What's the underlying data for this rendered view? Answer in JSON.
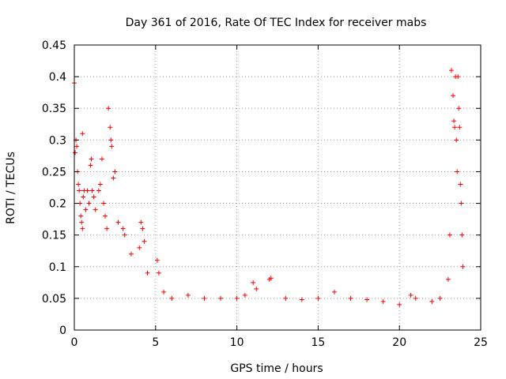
{
  "chart_data": {
    "type": "scatter",
    "title": "Day 361 of 2016, Rate Of TEC Index for receiver mabs",
    "xlabel": "GPS time / hours",
    "ylabel": "ROTI / TECUs",
    "xlim": [
      0,
      25
    ],
    "ylim": [
      0,
      0.45
    ],
    "xticks": [
      0,
      5,
      10,
      15,
      20,
      25
    ],
    "yticks": [
      0,
      0.05,
      0.1,
      0.15,
      0.2,
      0.25,
      0.3,
      0.35,
      0.4,
      0.45
    ],
    "xtick_labels": [
      "0",
      "5",
      "10",
      "15",
      "20",
      "25"
    ],
    "ytick_labels": [
      "0",
      "0.05",
      "0.1",
      "0.15",
      "0.2",
      "0.25",
      "0.3",
      "0.35",
      "0.4",
      "0.45"
    ],
    "grid": true,
    "marker": "+",
    "marker_color": "#ff0000",
    "series": [
      {
        "name": "ROTI",
        "points": [
          [
            0.0,
            0.39
          ],
          [
            0.05,
            0.28
          ],
          [
            0.1,
            0.3
          ],
          [
            0.15,
            0.29
          ],
          [
            0.2,
            0.25
          ],
          [
            0.25,
            0.23
          ],
          [
            0.3,
            0.22
          ],
          [
            0.35,
            0.2
          ],
          [
            0.4,
            0.18
          ],
          [
            0.45,
            0.17
          ],
          [
            0.5,
            0.31
          ],
          [
            0.5,
            0.16
          ],
          [
            0.55,
            0.21
          ],
          [
            0.6,
            0.22
          ],
          [
            0.7,
            0.19
          ],
          [
            0.8,
            0.22
          ],
          [
            0.9,
            0.2
          ],
          [
            1.0,
            0.26
          ],
          [
            1.05,
            0.27
          ],
          [
            1.1,
            0.22
          ],
          [
            1.2,
            0.21
          ],
          [
            1.3,
            0.19
          ],
          [
            1.5,
            0.22
          ],
          [
            1.6,
            0.23
          ],
          [
            1.7,
            0.27
          ],
          [
            1.8,
            0.2
          ],
          [
            1.9,
            0.18
          ],
          [
            2.0,
            0.16
          ],
          [
            2.1,
            0.35
          ],
          [
            2.2,
            0.32
          ],
          [
            2.25,
            0.3
          ],
          [
            2.3,
            0.29
          ],
          [
            2.4,
            0.24
          ],
          [
            2.5,
            0.25
          ],
          [
            2.7,
            0.17
          ],
          [
            3.0,
            0.16
          ],
          [
            3.1,
            0.15
          ],
          [
            3.5,
            0.12
          ],
          [
            4.0,
            0.13
          ],
          [
            4.1,
            0.17
          ],
          [
            4.2,
            0.16
          ],
          [
            4.3,
            0.14
          ],
          [
            4.5,
            0.09
          ],
          [
            5.1,
            0.11
          ],
          [
            5.2,
            0.09
          ],
          [
            5.5,
            0.06
          ],
          [
            6.0,
            0.05
          ],
          [
            7.0,
            0.055
          ],
          [
            8.0,
            0.05
          ],
          [
            9.0,
            0.05
          ],
          [
            10.0,
            0.05
          ],
          [
            10.5,
            0.055
          ],
          [
            11.0,
            0.075
          ],
          [
            11.2,
            0.065
          ],
          [
            12.0,
            0.08
          ],
          [
            12.1,
            0.082
          ],
          [
            13.0,
            0.05
          ],
          [
            14.0,
            0.048
          ],
          [
            15.0,
            0.05
          ],
          [
            16.0,
            0.06
          ],
          [
            17.0,
            0.05
          ],
          [
            18.0,
            0.048
          ],
          [
            19.0,
            0.045
          ],
          [
            20.0,
            0.04
          ],
          [
            20.7,
            0.055
          ],
          [
            21.0,
            0.05
          ],
          [
            22.0,
            0.045
          ],
          [
            22.5,
            0.05
          ],
          [
            23.0,
            0.08
          ],
          [
            23.1,
            0.15
          ],
          [
            23.2,
            0.41
          ],
          [
            23.3,
            0.37
          ],
          [
            23.35,
            0.33
          ],
          [
            23.4,
            0.32
          ],
          [
            23.45,
            0.4
          ],
          [
            23.5,
            0.3
          ],
          [
            23.55,
            0.25
          ],
          [
            23.6,
            0.4
          ],
          [
            23.65,
            0.35
          ],
          [
            23.7,
            0.32
          ],
          [
            23.75,
            0.23
          ],
          [
            23.8,
            0.2
          ],
          [
            23.85,
            0.15
          ],
          [
            23.9,
            0.1
          ]
        ]
      }
    ]
  }
}
